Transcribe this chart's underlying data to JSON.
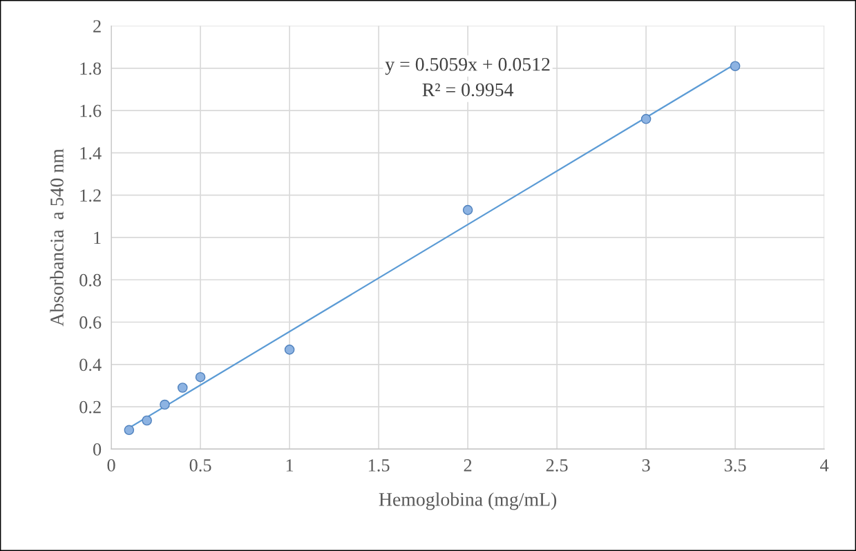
{
  "chart_data": {
    "type": "scatter",
    "xlabel": "Hemoglobina (mg/mL)",
    "ylabel": "Absorbancia  a 540 nm",
    "x": [
      0.1,
      0.2,
      0.3,
      0.4,
      0.5,
      1,
      2,
      3,
      3.5
    ],
    "series": [
      {
        "color": "#8db3e2",
        "marker": "circle",
        "values": [
          0.09,
          0.135,
          0.21,
          0.29,
          0.34,
          0.47,
          1.13,
          1.56,
          1.81
        ]
      },
      {
        "type": "line",
        "color": "#5b9bd5",
        "x": [
          0.1,
          3.5
        ],
        "values": [
          0.1,
          1.82
        ]
      }
    ],
    "xlim": [
      0,
      4
    ],
    "xticks": [
      0,
      0.5,
      1,
      1.5,
      2,
      2.5,
      3,
      3.5,
      4
    ],
    "ylim": [
      0,
      2
    ],
    "yticks": [
      0,
      0.2,
      0.4,
      0.6,
      0.8,
      1,
      1.2,
      1.4,
      1.6,
      1.8,
      2
    ],
    "grid": true,
    "annotations": [
      "y = 0.5059x + 0.0512",
      "R² = 0.9954"
    ]
  }
}
